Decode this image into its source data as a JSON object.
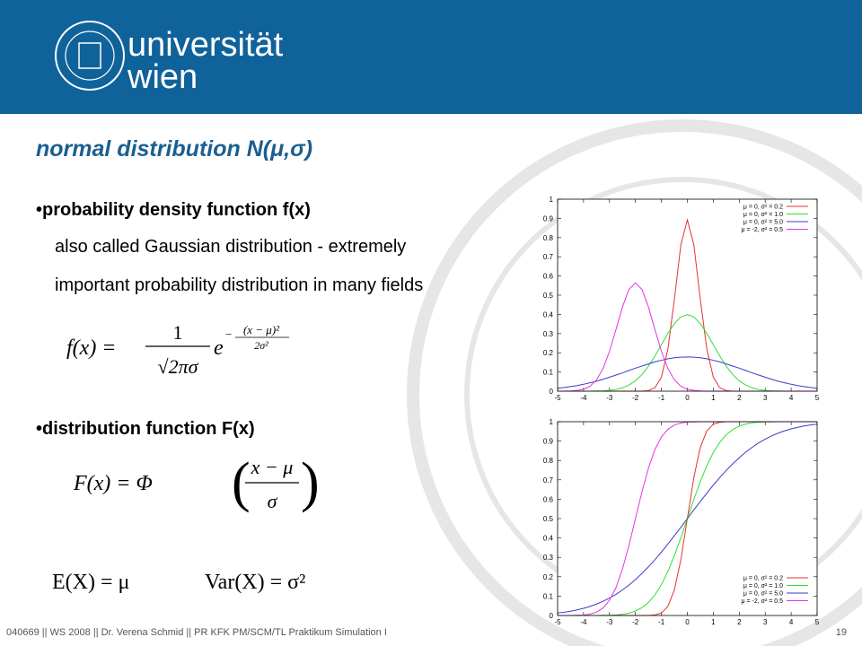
{
  "header": {
    "logo_line1": "universität",
    "logo_line2": "wien"
  },
  "slide": {
    "title": "normal distribution N(μ,σ)",
    "bullet1": "•probability density function f(x)",
    "text1": "also called Gaussian distribution - extremely",
    "text2": "important probability distribution in many fields",
    "formula1": {
      "lhs": "f(x) =",
      "num": "1",
      "den": "√2πσ",
      "e": "e",
      "minus": "−",
      "exp_num": "(x − μ)²",
      "exp_den": "2σ²"
    },
    "bullet2": "•distribution function F(x)",
    "formula2": {
      "lhs": "F(x) = Φ",
      "open": "(",
      "num": "x − μ",
      "den": "σ",
      "close": ")"
    },
    "formula3": {
      "expectation": "E(X) = μ",
      "variance": "Var(X) = σ²"
    },
    "footer": "040669 || WS 2008 || Dr. Verena Schmid || PR KFK PM/SCM/TL Praktikum Simulation I",
    "page_number": "19"
  },
  "chart_data": [
    {
      "type": "line",
      "legend": "upper right",
      "xlim": [
        -5,
        5
      ],
      "xticks": [
        -5,
        -4,
        -3,
        -2,
        -1,
        0,
        1,
        2,
        3,
        4,
        5
      ],
      "ylim": [
        0,
        1
      ],
      "yticks": [
        0,
        0.1,
        0.2,
        0.3,
        0.4,
        0.5,
        0.6,
        0.7,
        0.8,
        0.9,
        1
      ],
      "x": [
        -5,
        -4.75,
        -4.5,
        -4.25,
        -4,
        -3.75,
        -3.5,
        -3.25,
        -3,
        -2.75,
        -2.5,
        -2.25,
        -2,
        -1.75,
        -1.5,
        -1.25,
        -1,
        -0.75,
        -0.5,
        -0.25,
        0,
        0.25,
        0.5,
        0.75,
        1,
        1.25,
        1.5,
        1.75,
        2,
        2.25,
        2.5,
        2.75,
        3,
        3.25,
        3.5,
        3.75,
        4,
        4.25,
        4.5,
        4.75,
        5
      ],
      "series": [
        {
          "name": "μ = 0, σ² = 0.2",
          "color": "#e8322d",
          "values": [
            0,
            0,
            0,
            0,
            0,
            0,
            0,
            0,
            0,
            0,
            0,
            0,
            0,
            0,
            0.003,
            0.018,
            0.073,
            0.219,
            0.478,
            0.763,
            0.892,
            0.763,
            0.478,
            0.219,
            0.073,
            0.018,
            0.003,
            0,
            0,
            0,
            0,
            0,
            0,
            0,
            0,
            0,
            0,
            0,
            0,
            0,
            0
          ]
        },
        {
          "name": "μ = 0, σ² = 1.0",
          "color": "#2ee02e",
          "values": [
            0,
            0,
            0,
            0,
            0,
            0,
            0.001,
            0.002,
            0.004,
            0.009,
            0.018,
            0.032,
            0.054,
            0.086,
            0.13,
            0.183,
            0.242,
            0.301,
            0.352,
            0.387,
            0.399,
            0.387,
            0.352,
            0.301,
            0.242,
            0.183,
            0.13,
            0.086,
            0.054,
            0.032,
            0.018,
            0.009,
            0.004,
            0.002,
            0.001,
            0,
            0,
            0,
            0,
            0,
            0
          ]
        },
        {
          "name": "μ = 0, σ² = 5.0",
          "color": "#3c3cc8",
          "values": [
            0.015,
            0.019,
            0.024,
            0.029,
            0.036,
            0.044,
            0.052,
            0.062,
            0.073,
            0.084,
            0.095,
            0.108,
            0.12,
            0.131,
            0.142,
            0.153,
            0.161,
            0.169,
            0.174,
            0.177,
            0.178,
            0.177,
            0.174,
            0.169,
            0.161,
            0.153,
            0.142,
            0.131,
            0.12,
            0.108,
            0.095,
            0.084,
            0.073,
            0.062,
            0.052,
            0.044,
            0.036,
            0.029,
            0.024,
            0.019,
            0.015
          ]
        },
        {
          "name": "μ = -2, σ² = 0.5",
          "color": "#e632e6",
          "values": [
            0,
            0,
            0.001,
            0.004,
            0.01,
            0.026,
            0.059,
            0.118,
            0.208,
            0.321,
            0.439,
            0.53,
            0.564,
            0.53,
            0.439,
            0.321,
            0.208,
            0.118,
            0.059,
            0.026,
            0.01,
            0.004,
            0.001,
            0,
            0,
            0,
            0,
            0,
            0,
            0,
            0,
            0,
            0,
            0,
            0,
            0,
            0,
            0,
            0,
            0,
            0
          ]
        }
      ]
    },
    {
      "type": "line",
      "legend": "lower right",
      "xlim": [
        -5,
        5
      ],
      "xticks": [
        -5,
        -4,
        -3,
        -2,
        -1,
        0,
        1,
        2,
        3,
        4,
        5
      ],
      "ylim": [
        0,
        1
      ],
      "yticks": [
        0,
        0.1,
        0.2,
        0.3,
        0.4,
        0.5,
        0.6,
        0.7,
        0.8,
        0.9,
        1
      ],
      "x": [
        -5,
        -4.75,
        -4.5,
        -4.25,
        -4,
        -3.75,
        -3.5,
        -3.25,
        -3,
        -2.75,
        -2.5,
        -2.25,
        -2,
        -1.75,
        -1.5,
        -1.25,
        -1,
        -0.75,
        -0.5,
        -0.25,
        0,
        0.25,
        0.5,
        0.75,
        1,
        1.25,
        1.5,
        1.75,
        2,
        2.25,
        2.5,
        2.75,
        3,
        3.25,
        3.5,
        3.75,
        4,
        4.25,
        4.5,
        4.75,
        5
      ],
      "series": [
        {
          "name": "μ = 0, σ² = 0.2",
          "color": "#e8322d",
          "values": [
            0,
            0,
            0,
            0,
            0,
            0,
            0,
            0,
            0,
            0,
            0,
            0,
            0,
            0,
            0,
            0.003,
            0.013,
            0.047,
            0.132,
            0.288,
            0.5,
            0.712,
            0.868,
            0.953,
            0.987,
            0.997,
            1,
            1,
            1,
            1,
            1,
            1,
            1,
            1,
            1,
            1,
            1,
            1,
            1,
            1,
            1
          ]
        },
        {
          "name": "μ = 0, σ² = 1.0",
          "color": "#2ee02e",
          "values": [
            0,
            0,
            0,
            0,
            0,
            0,
            0,
            0.001,
            0.001,
            0.003,
            0.006,
            0.012,
            0.023,
            0.04,
            0.067,
            0.106,
            0.159,
            0.227,
            0.309,
            0.401,
            0.5,
            0.599,
            0.691,
            0.773,
            0.841,
            0.894,
            0.933,
            0.96,
            0.977,
            0.988,
            0.994,
            0.997,
            0.999,
            0.999,
            1,
            1,
            1,
            1,
            1,
            1,
            1
          ]
        },
        {
          "name": "μ = 0, σ² = 5.0",
          "color": "#3c3cc8",
          "values": [
            0.013,
            0.017,
            0.022,
            0.029,
            0.037,
            0.047,
            0.059,
            0.073,
            0.09,
            0.109,
            0.132,
            0.157,
            0.186,
            0.217,
            0.251,
            0.288,
            0.327,
            0.369,
            0.412,
            0.455,
            0.5,
            0.545,
            0.588,
            0.631,
            0.673,
            0.712,
            0.749,
            0.783,
            0.814,
            0.843,
            0.868,
            0.891,
            0.91,
            0.927,
            0.941,
            0.953,
            0.963,
            0.971,
            0.978,
            0.983,
            0.987
          ]
        },
        {
          "name": "μ = -2, σ² = 0.5",
          "color": "#e632e6",
          "values": [
            0,
            0,
            0,
            0.001,
            0.002,
            0.007,
            0.017,
            0.039,
            0.079,
            0.144,
            0.24,
            0.362,
            0.5,
            0.638,
            0.76,
            0.856,
            0.921,
            0.961,
            0.983,
            0.993,
            0.998,
            0.999,
            1,
            1,
            1,
            1,
            1,
            1,
            1,
            1,
            1,
            1,
            1,
            1,
            1,
            1,
            1,
            1,
            1,
            1,
            1
          ]
        }
      ]
    }
  ]
}
